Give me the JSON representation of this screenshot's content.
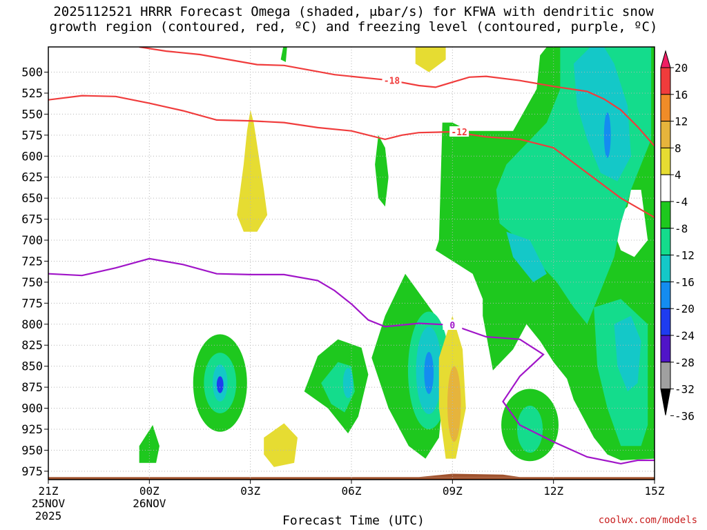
{
  "title": {
    "line1": "2025112521 HRRR Forecast Omega (shaded, μbar/s) for KFWA with dendritic snow",
    "line2": "growth region (contoured, red, ºC) and freezing level (contoured, purple, ºC)"
  },
  "credit": "coolwx.com/models",
  "chart_data": {
    "type": "time-height cross-section (filled contour)",
    "title": "2025112521 HRRR Forecast Omega (shaded, μbar/s) for KFWA with dendritic snow growth region (contoured, red, ºC) and freezing level (contoured, purple, ºC)",
    "xlabel": "Forecast Time (UTC)",
    "ylabel": "",
    "x_hours_range": [
      0,
      18
    ],
    "y_range_hPa": [
      985,
      470
    ],
    "y_ticks": [
      500,
      525,
      550,
      575,
      600,
      625,
      650,
      675,
      700,
      725,
      750,
      775,
      800,
      825,
      850,
      875,
      900,
      925,
      950,
      975
    ],
    "x_ticks": [
      {
        "hour": 0,
        "lines": [
          "21Z",
          "25NOV",
          "2025"
        ]
      },
      {
        "hour": 3,
        "lines": [
          "00Z",
          "26NOV"
        ]
      },
      {
        "hour": 6,
        "lines": [
          "03Z"
        ]
      },
      {
        "hour": 9,
        "lines": [
          "06Z"
        ]
      },
      {
        "hour": 12,
        "lines": [
          "09Z"
        ]
      },
      {
        "hour": 15,
        "lines": [
          "12Z"
        ]
      },
      {
        "hour": 18,
        "lines": [
          "15Z"
        ]
      }
    ],
    "colorbar": {
      "labels": [
        "20",
        "16",
        "12",
        "8",
        "4",
        "-4",
        "-8",
        "-12",
        "-16",
        "-20",
        "-24",
        "-28",
        "-32",
        "-36"
      ],
      "colors": [
        "#f01e64",
        "#f03c3c",
        "#f08c28",
        "#e6b43c",
        "#e6dc32",
        "#ffffff",
        "#1ec81e",
        "#14dc8c",
        "#14c8c8",
        "#148cf0",
        "#1e3cf0",
        "#5014c8",
        "#a014c8",
        "#a0a0a0"
      ]
    },
    "contour_labels": {
      "dgz_upper": "-18",
      "dgz_lower": "-12",
      "freezing": "0"
    },
    "series": [
      {
        "name": "-18 C isotherm (red)",
        "color": "#f03c3c",
        "points": [
          [
            2.7,
            470
          ],
          [
            3.5,
            475
          ],
          [
            4.5,
            479
          ],
          [
            6.2,
            491
          ],
          [
            7,
            492
          ],
          [
            8.5,
            503
          ],
          [
            10.2,
            510
          ],
          [
            11,
            516
          ],
          [
            11.5,
            518
          ],
          [
            12,
            512
          ],
          [
            12.5,
            506
          ],
          [
            13,
            505
          ],
          [
            14,
            510
          ],
          [
            15,
            517
          ],
          [
            16,
            523
          ],
          [
            16.5,
            532
          ],
          [
            17,
            545
          ],
          [
            17.5,
            565
          ],
          [
            18,
            588
          ]
        ]
      },
      {
        "name": "-12 C isotherm (red)",
        "color": "#f03c3c",
        "points": [
          [
            0,
            533
          ],
          [
            1,
            528
          ],
          [
            2,
            529
          ],
          [
            3,
            537
          ],
          [
            4,
            546
          ],
          [
            5,
            557
          ],
          [
            6,
            558
          ],
          [
            7,
            560
          ],
          [
            8,
            566
          ],
          [
            9,
            570
          ],
          [
            10,
            580
          ],
          [
            10.5,
            575
          ],
          [
            11,
            572
          ],
          [
            12,
            571
          ],
          [
            13,
            577
          ],
          [
            14,
            580
          ],
          [
            15,
            590
          ],
          [
            16,
            620
          ],
          [
            17,
            650
          ],
          [
            18,
            673
          ]
        ]
      },
      {
        "name": "0 C freezing level (purple)",
        "color": "#a014c8",
        "points": [
          [
            0,
            740
          ],
          [
            1,
            742
          ],
          [
            2,
            733
          ],
          [
            3,
            722
          ],
          [
            4,
            729
          ],
          [
            5,
            740
          ],
          [
            6,
            741
          ],
          [
            7,
            741
          ],
          [
            8,
            748
          ],
          [
            8.5,
            760
          ],
          [
            9,
            776
          ],
          [
            9.5,
            795
          ],
          [
            10,
            803
          ],
          [
            11,
            799
          ],
          [
            12,
            801
          ],
          [
            12.5,
            808
          ],
          [
            13,
            815
          ],
          [
            14,
            818
          ],
          [
            14.7,
            836
          ],
          [
            14,
            862
          ],
          [
            13.5,
            892
          ],
          [
            14,
            920
          ],
          [
            15,
            940
          ],
          [
            16,
            958
          ],
          [
            17,
            966
          ],
          [
            17.5,
            962
          ],
          [
            18,
            962
          ]
        ]
      }
    ],
    "omega_areas": [
      {
        "value_range": "-8 to -4",
        "location": "broad region right half, hours 11.5-18, 470-960 hPa"
      },
      {
        "value_range": "-12 to -8",
        "location": "core of right-side region, hours 14-17.5"
      },
      {
        "value_range": "-16 to -12",
        "location": "hours 16-17, 480-630 hPa; and near hour 17.3, 800-880 hPa"
      },
      {
        "value_range": "-20 to -16",
        "location": "hour 16.6, 545-600 hPa"
      },
      {
        "value_range": "-8 to -4",
        "location": "cells near hours 4.1, 7.3, 10.7, 12.2, 14.2"
      },
      {
        "value_range": "-24 to -16",
        "location": "cores near hour 5.1 (870 hPa) and hour 11.6 (860 hPa)"
      },
      {
        "value_range": "4 to 8",
        "location": "hour 6.6 (550-670 hPa), hour 7.4 (930 hPa), hour 12.2 (480 hPa), hour 12.0 (790-960 hPa)"
      },
      {
        "value_range": "8 to 12",
        "location": "hour 12.0, 860-925 hPa"
      }
    ],
    "terrain": {
      "color": "#a0522d",
      "note": "brown ground strip at bottom, ~985 hPa"
    }
  }
}
